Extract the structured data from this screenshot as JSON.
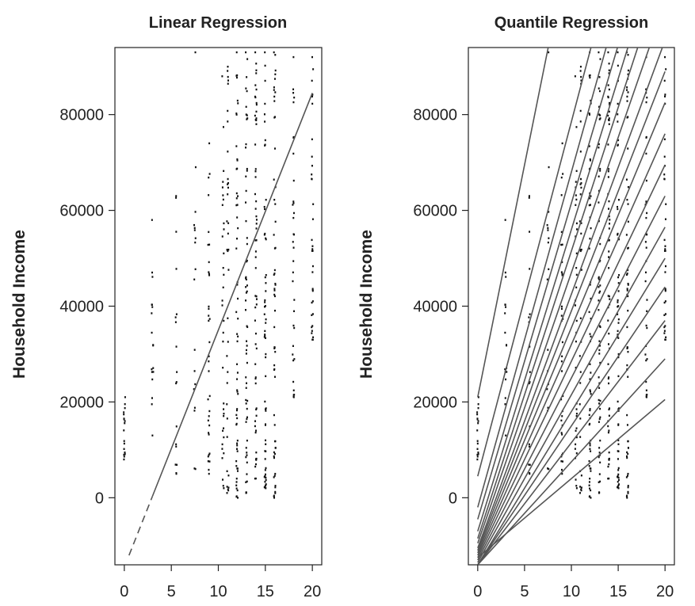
{
  "chart_data": [
    {
      "type": "scatter",
      "title": "Linear Regression",
      "xlabel": "",
      "ylabel": "Household Income",
      "xlim": [
        -1,
        21
      ],
      "ylim": [
        -14000,
        94000
      ],
      "xticks": [
        "0",
        "5",
        "10",
        "15",
        "20"
      ],
      "yticks": [
        "0",
        "20000",
        "40000",
        "60000",
        "80000"
      ],
      "grid": false,
      "points_x": [
        0,
        3,
        5.5,
        7.5,
        9,
        10.5,
        11,
        12,
        13,
        14,
        15,
        16,
        18,
        20
      ],
      "points_y_ranges": [
        [
          8000,
          21000
        ],
        [
          13000,
          58000
        ],
        [
          5000,
          63000
        ],
        [
          6000,
          93000
        ],
        [
          5000,
          74000
        ],
        [
          2000,
          88000
        ],
        [
          1000,
          90000
        ],
        [
          0,
          93000
        ],
        [
          1000,
          93000
        ],
        [
          4000,
          93000
        ],
        [
          2000,
          93000
        ],
        [
          0,
          93000
        ],
        [
          21000,
          92000
        ],
        [
          33000,
          92000
        ]
      ],
      "lines": [
        {
          "intercept": -14500,
          "slope": 4950
        }
      ]
    },
    {
      "type": "scatter",
      "title": "Quantile Regression",
      "xlabel": "",
      "ylabel": "Household Income",
      "xlim": [
        -1,
        21
      ],
      "ylim": [
        -14000,
        94000
      ],
      "xticks": [
        "0",
        "5",
        "10",
        "15",
        "20"
      ],
      "yticks": [
        "0",
        "20000",
        "40000",
        "60000",
        "80000"
      ],
      "grid": false,
      "points_x": [
        0,
        3,
        5.5,
        7.5,
        9,
        10.5,
        11,
        12,
        13,
        14,
        15,
        16,
        18,
        20
      ],
      "points_y_ranges": [
        [
          8000,
          21000
        ],
        [
          13000,
          58000
        ],
        [
          5000,
          63000
        ],
        [
          6000,
          93000
        ],
        [
          5000,
          74000
        ],
        [
          2000,
          88000
        ],
        [
          1000,
          90000
        ],
        [
          0,
          93000
        ],
        [
          1000,
          93000
        ],
        [
          4000,
          93000
        ],
        [
          2000,
          93000
        ],
        [
          0,
          93000
        ],
        [
          21000,
          92000
        ],
        [
          33000,
          92000
        ]
      ],
      "lines": [
        {
          "intercept": 21000,
          "slope": 9700
        },
        {
          "intercept": 4500,
          "slope": 7400
        },
        {
          "intercept": -2000,
          "slope": 7000
        },
        {
          "intercept": -4500,
          "slope": 6600
        },
        {
          "intercept": -7000,
          "slope": 6300
        },
        {
          "intercept": -8500,
          "slope": 6000
        },
        {
          "intercept": -9500,
          "slope": 5650
        },
        {
          "intercept": -10500,
          "slope": 5300
        },
        {
          "intercept": -11000,
          "slope": 5000
        },
        {
          "intercept": -11500,
          "slope": 4700
        },
        {
          "intercept": -12000,
          "slope": 4400
        },
        {
          "intercept": -12500,
          "slope": 4100
        },
        {
          "intercept": -13000,
          "slope": 3800
        },
        {
          "intercept": -13500,
          "slope": 3500
        },
        {
          "intercept": -14000,
          "slope": 3200
        },
        {
          "intercept": -14000,
          "slope": 2900
        },
        {
          "intercept": -14000,
          "slope": 2550
        },
        {
          "intercept": -14000,
          "slope": 2150
        },
        {
          "intercept": -12500,
          "slope": 1650
        }
      ]
    }
  ]
}
